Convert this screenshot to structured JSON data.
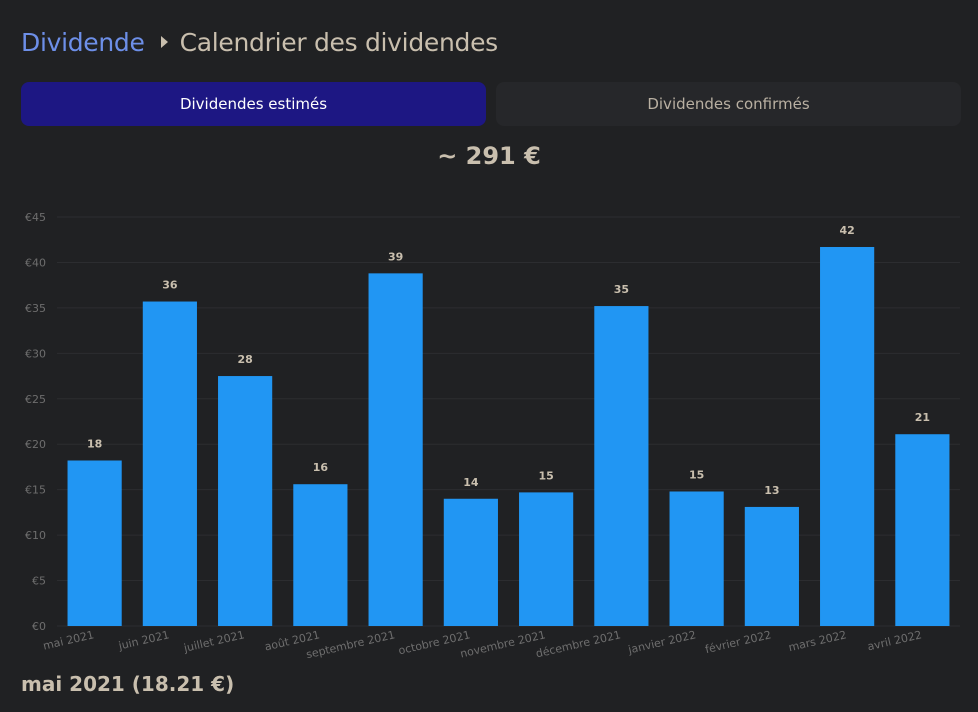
{
  "breadcrumb": {
    "parent": "Dividende",
    "current": "Calendrier des dividendes"
  },
  "tabs": [
    {
      "label": "Dividendes estimés",
      "active": true
    },
    {
      "label": "Dividendes confirmés",
      "active": false
    }
  ],
  "total": "~ 291 €",
  "selection": "mai 2021 (18.21 €)",
  "colors": {
    "background": "#202123",
    "bar": "#2196f3",
    "active_tab": "#1d1783",
    "link": "#6d8fe8"
  },
  "chart_data": {
    "type": "bar",
    "categories": [
      "mai 2021",
      "juin 2021",
      "juillet 2021",
      "août 2021",
      "septembre 2021",
      "octobre 2021",
      "novembre 2021",
      "décembre 2021",
      "janvier 2022",
      "février 2022",
      "mars 2022",
      "avril 2022"
    ],
    "values": [
      18.21,
      35.7,
      27.5,
      15.6,
      38.8,
      14.0,
      14.7,
      35.2,
      14.8,
      13.1,
      41.7,
      21.1
    ],
    "data_labels": [
      "18",
      "36",
      "28",
      "16",
      "39",
      "14",
      "15",
      "35",
      "15",
      "13",
      "42",
      "21"
    ],
    "y_ticks": [
      "€0",
      "€5",
      "€10",
      "€15",
      "€20",
      "€25",
      "€30",
      "€35",
      "€40",
      "€45"
    ],
    "ylim": [
      0,
      45
    ],
    "grid": true,
    "xlabel": "",
    "ylabel": "",
    "title": ""
  }
}
